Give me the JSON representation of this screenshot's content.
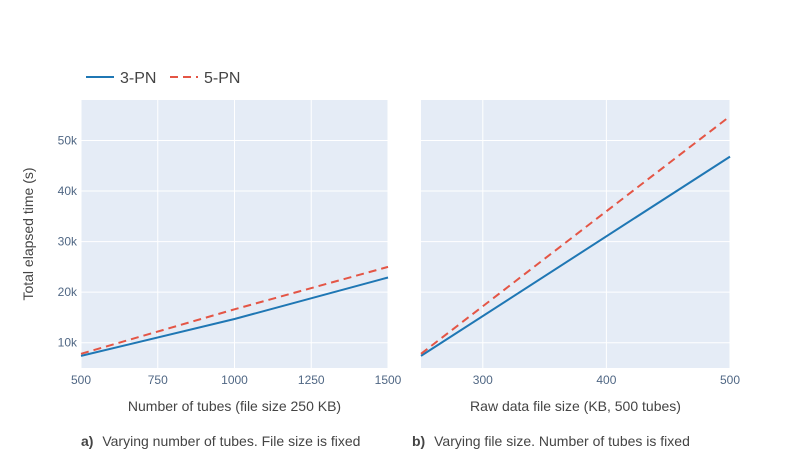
{
  "legend": {
    "items": [
      {
        "label": "3-PN",
        "color": "#1f77b4",
        "dash": "solid"
      },
      {
        "label": "5-PN",
        "color": "#e45545",
        "dash": "dash"
      }
    ]
  },
  "shared_ylabel": "Total elapsed time (s)",
  "captions": [
    {
      "prefix": "a)",
      "text": "Varying number of tubes. File size is fixed"
    },
    {
      "prefix": "b)",
      "text": "Varying file size. Number of tubes is fixed"
    }
  ],
  "colors": {
    "plot_bg": "#e5ecf6",
    "grid": "#ffffff"
  },
  "chart_data": [
    {
      "type": "line",
      "xlabel": "Number of tubes (file size 250 KB)",
      "ylabel": "Total elapsed time (s)",
      "xlim": [
        500,
        1500
      ],
      "ylim": [
        5000,
        58000
      ],
      "xticks": [
        500,
        750,
        1000,
        1250,
        1500
      ],
      "xtick_labels": [
        "500",
        "750",
        "1000",
        "1250",
        "1500"
      ],
      "yticks": [
        10000,
        20000,
        30000,
        40000,
        50000
      ],
      "ytick_labels": [
        "10k",
        "20k",
        "30k",
        "40k",
        "50k"
      ],
      "series": [
        {
          "name": "3-PN",
          "x": [
            500,
            1000,
            1500
          ],
          "y": [
            7400,
            14700,
            22900
          ]
        },
        {
          "name": "5-PN",
          "x": [
            500,
            1000,
            1500
          ],
          "y": [
            7800,
            16600,
            25000
          ]
        }
      ]
    },
    {
      "type": "line",
      "xlabel": "Raw data file size (KB, 500 tubes)",
      "ylabel": "",
      "xlim": [
        250,
        500
      ],
      "ylim": [
        5000,
        58000
      ],
      "xticks": [
        300,
        400,
        500
      ],
      "xtick_labels": [
        "300",
        "400",
        "500"
      ],
      "yticks": [
        10000,
        20000,
        30000,
        40000,
        50000
      ],
      "ytick_labels": [],
      "series": [
        {
          "name": "3-PN",
          "x": [
            250,
            500
          ],
          "y": [
            7400,
            46800
          ]
        },
        {
          "name": "5-PN",
          "x": [
            250,
            500
          ],
          "y": [
            7800,
            54800
          ]
        }
      ]
    }
  ]
}
